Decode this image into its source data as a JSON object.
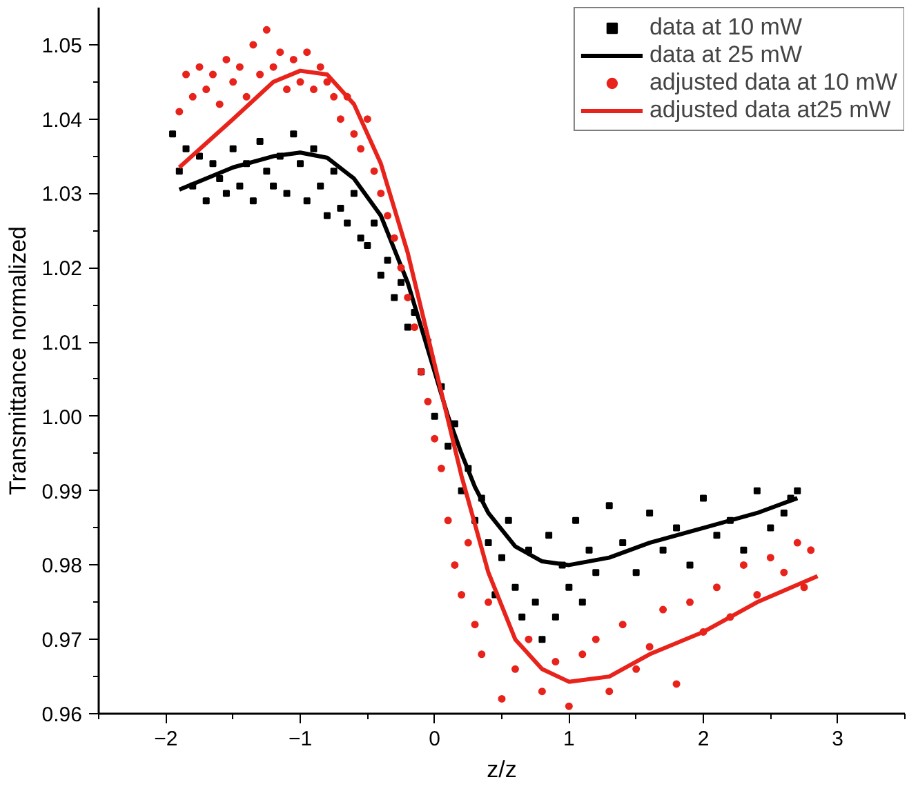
{
  "chart_data": {
    "type": "scatter",
    "xlabel": "z/z",
    "ylabel": "Transmittance normalized",
    "xlim": [
      -2.5,
      3.5
    ],
    "ylim": [
      0.96,
      1.055
    ],
    "xticks": [
      -2,
      -1,
      0,
      1,
      2,
      3
    ],
    "yticks": [
      {
        "value": 0.96,
        "label": "0.96"
      },
      {
        "value": 0.97,
        "label": "0.97"
      },
      {
        "value": 0.98,
        "label": "0.98"
      },
      {
        "value": 0.99,
        "label": "0.99"
      },
      {
        "value": 1.0,
        "label": "1.00"
      },
      {
        "value": 1.01,
        "label": "1.01"
      },
      {
        "value": 1.02,
        "label": "1.02"
      },
      {
        "value": 1.03,
        "label": "1.03"
      },
      {
        "value": 1.04,
        "label": "1.04"
      },
      {
        "value": 1.05,
        "label": "1.05"
      }
    ],
    "grid": false,
    "legend": "top right",
    "series": [
      {
        "name": "data at 10 mW",
        "marker": "square",
        "color": "#000000",
        "x": [
          -1.95,
          -1.9,
          -1.85,
          -1.8,
          -1.75,
          -1.7,
          -1.65,
          -1.6,
          -1.55,
          -1.5,
          -1.45,
          -1.4,
          -1.35,
          -1.3,
          -1.25,
          -1.2,
          -1.15,
          -1.1,
          -1.05,
          -1.0,
          -0.95,
          -0.9,
          -0.85,
          -0.8,
          -0.75,
          -0.7,
          -0.65,
          -0.6,
          -0.55,
          -0.5,
          -0.45,
          -0.4,
          -0.35,
          -0.3,
          -0.25,
          -0.2,
          -0.15,
          -0.1,
          -0.05,
          0.0,
          0.05,
          0.1,
          0.15,
          0.2,
          0.25,
          0.3,
          0.35,
          0.4,
          0.45,
          0.5,
          0.55,
          0.6,
          0.65,
          0.7,
          0.75,
          0.8,
          0.85,
          0.9,
          0.95,
          1.0,
          1.05,
          1.1,
          1.15,
          1.2,
          1.3,
          1.4,
          1.5,
          1.6,
          1.7,
          1.8,
          1.9,
          2.0,
          2.1,
          2.2,
          2.3,
          2.4,
          2.5,
          2.6,
          2.65,
          2.7
        ],
        "values": [
          1.038,
          1.033,
          1.036,
          1.031,
          1.035,
          1.029,
          1.034,
          1.032,
          1.03,
          1.036,
          1.031,
          1.034,
          1.029,
          1.037,
          1.033,
          1.031,
          1.035,
          1.03,
          1.038,
          1.034,
          1.029,
          1.036,
          1.031,
          1.027,
          1.033,
          1.028,
          1.026,
          1.03,
          1.024,
          1.023,
          1.026,
          1.019,
          1.021,
          1.016,
          1.018,
          1.012,
          1.014,
          1.006,
          1.01,
          1.0,
          1.004,
          0.996,
          0.999,
          0.99,
          0.993,
          0.986,
          0.989,
          0.983,
          0.976,
          0.981,
          0.986,
          0.977,
          0.973,
          0.982,
          0.975,
          0.97,
          0.984,
          0.973,
          0.98,
          0.977,
          0.986,
          0.975,
          0.982,
          0.979,
          0.988,
          0.983,
          0.979,
          0.987,
          0.982,
          0.985,
          0.98,
          0.989,
          0.984,
          0.986,
          0.982,
          0.99,
          0.985,
          0.987,
          0.989,
          0.99
        ]
      },
      {
        "name": "data at 25 mW",
        "type": "line",
        "color": "#000000",
        "x": [
          -1.9,
          -1.5,
          -1.2,
          -1.0,
          -0.8,
          -0.6,
          -0.4,
          -0.2,
          -0.1,
          0.0,
          0.1,
          0.2,
          0.3,
          0.4,
          0.6,
          0.8,
          1.0,
          1.3,
          1.6,
          2.0,
          2.4,
          2.7
        ],
        "values": [
          1.0305,
          1.0335,
          1.035,
          1.0355,
          1.0348,
          1.032,
          1.027,
          1.018,
          1.012,
          1.006,
          1.0,
          0.995,
          0.9905,
          0.987,
          0.9825,
          0.9805,
          0.98,
          0.981,
          0.983,
          0.985,
          0.987,
          0.989
        ]
      },
      {
        "name": "adjusted data at 10 mW",
        "marker": "circle",
        "color": "#e8231b",
        "x": [
          -1.9,
          -1.85,
          -1.8,
          -1.75,
          -1.7,
          -1.65,
          -1.6,
          -1.55,
          -1.5,
          -1.45,
          -1.4,
          -1.35,
          -1.3,
          -1.25,
          -1.2,
          -1.15,
          -1.1,
          -1.05,
          -1.0,
          -0.95,
          -0.9,
          -0.85,
          -0.8,
          -0.75,
          -0.7,
          -0.65,
          -0.6,
          -0.55,
          -0.5,
          -0.45,
          -0.4,
          -0.35,
          -0.3,
          -0.25,
          -0.2,
          -0.15,
          -0.1,
          -0.05,
          0.0,
          0.05,
          0.1,
          0.15,
          0.2,
          0.25,
          0.3,
          0.35,
          0.4,
          0.5,
          0.6,
          0.7,
          0.8,
          0.9,
          1.0,
          1.1,
          1.2,
          1.3,
          1.4,
          1.5,
          1.6,
          1.7,
          1.8,
          1.9,
          2.0,
          2.1,
          2.2,
          2.3,
          2.4,
          2.5,
          2.6,
          2.7,
          2.75,
          2.8
        ],
        "values": [
          1.041,
          1.046,
          1.043,
          1.047,
          1.044,
          1.046,
          1.042,
          1.048,
          1.045,
          1.047,
          1.043,
          1.05,
          1.046,
          1.052,
          1.047,
          1.049,
          1.044,
          1.048,
          1.045,
          1.049,
          1.044,
          1.047,
          1.045,
          1.043,
          1.04,
          1.043,
          1.038,
          1.036,
          1.04,
          1.033,
          1.03,
          1.027,
          1.024,
          1.02,
          1.016,
          1.012,
          1.006,
          1.002,
          0.997,
          0.993,
          0.986,
          0.98,
          0.976,
          0.983,
          0.972,
          0.968,
          0.975,
          0.962,
          0.966,
          0.97,
          0.963,
          0.967,
          0.961,
          0.968,
          0.97,
          0.963,
          0.972,
          0.966,
          0.969,
          0.974,
          0.964,
          0.975,
          0.971,
          0.977,
          0.973,
          0.98,
          0.976,
          0.981,
          0.979,
          0.983,
          0.977,
          0.982
        ]
      },
      {
        "name": "adjusted data at25 mW",
        "type": "line",
        "color": "#e8231b",
        "x": [
          -1.9,
          -1.5,
          -1.2,
          -1.0,
          -0.8,
          -0.6,
          -0.4,
          -0.2,
          0.0,
          0.2,
          0.4,
          0.6,
          0.8,
          1.0,
          1.3,
          1.6,
          2.0,
          2.4,
          2.85
        ],
        "values": [
          1.0335,
          1.04,
          1.045,
          1.0465,
          1.046,
          1.042,
          1.034,
          1.022,
          1.007,
          0.992,
          0.979,
          0.97,
          0.966,
          0.9643,
          0.965,
          0.968,
          0.971,
          0.975,
          0.9785
        ]
      }
    ]
  }
}
